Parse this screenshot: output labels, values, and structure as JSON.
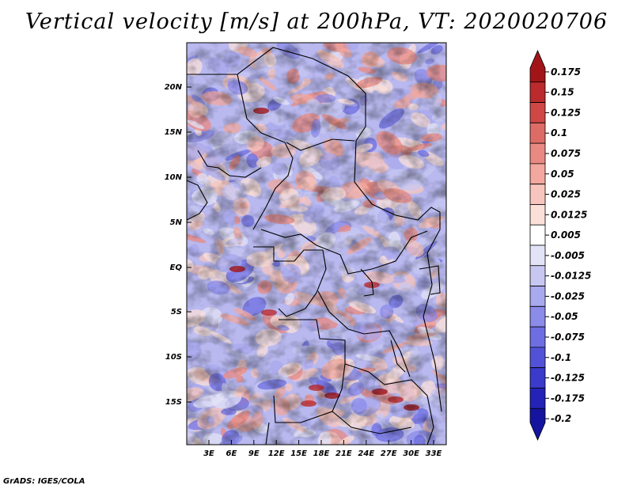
{
  "title": "Vertical velocity [m/s] at 200hPa, VT: 2020020706",
  "credit": "GrADS: IGES/COLA",
  "map": {
    "lat_ticks": [
      "20N",
      "15N",
      "10N",
      "5N",
      "EQ",
      "5S",
      "10S",
      "15S"
    ],
    "lon_ticks": [
      "3E",
      "6E",
      "9E",
      "12E",
      "15E",
      "18E",
      "21E",
      "24E",
      "27E",
      "30E",
      "33E"
    ]
  },
  "colorbar": {
    "labels": [
      "0.175",
      "0.15",
      "0.125",
      "0.1",
      "0.075",
      "0.05",
      "0.025",
      "0.0125",
      "0.005",
      "-0.005",
      "-0.0125",
      "-0.025",
      "-0.05",
      "-0.075",
      "-0.1",
      "-0.125",
      "-0.175",
      "-0.2"
    ],
    "colors": [
      "#a11519",
      "#bb2a2d",
      "#cf4846",
      "#de6c66",
      "#e98a82",
      "#f2a89e",
      "#f7c5bd",
      "#fbe0da",
      "#ffffff",
      "#e3e3f7",
      "#c7c7f2",
      "#a9a9ee",
      "#8b8be9",
      "#6e6ee2",
      "#5252d8",
      "#3a3acb",
      "#2323b8",
      "#14149e"
    ]
  }
}
